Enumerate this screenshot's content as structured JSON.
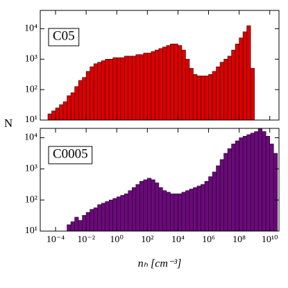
{
  "chart_data": [
    {
      "type": "histogram",
      "label": "C05",
      "color": "#dd0000",
      "edgecolor": "#300000",
      "log_x": true,
      "log_y": true,
      "ylabel": "N",
      "bins": [
        3.16e-05,
        5.62e-05,
        0.0001,
        0.000178,
        0.000316,
        0.000562,
        0.001,
        0.00178,
        0.00316,
        0.00562,
        0.01,
        0.0178,
        0.0316,
        0.0562,
        0.1,
        0.178,
        0.316,
        0.562,
        1,
        1.78,
        3.16,
        5.62,
        10,
        17.8,
        31.6,
        56.2,
        100,
        178,
        316,
        562,
        1000,
        1780,
        3160,
        5620,
        10000,
        17800,
        31600,
        56200,
        100000,
        178000,
        316000,
        562000,
        1000000.0,
        1780000.0,
        3160000.0,
        5620000.0,
        10000000.0,
        17800000.0,
        31600000.0,
        56200000.0,
        100000000.0,
        178000000.0,
        316000000.0,
        562000000.0,
        1000000000.0
      ],
      "values": [
        16,
        20,
        25,
        32,
        40,
        63,
        79,
        126,
        200,
        251,
        398,
        562,
        708,
        794,
        891,
        1000,
        1000,
        1122,
        1122,
        1122,
        1259,
        1259,
        1259,
        1413,
        1413,
        1585,
        1585,
        1778,
        1995,
        2239,
        2512,
        2818,
        3162,
        3162,
        2818,
        1995,
        1000,
        501,
        316,
        282,
        282,
        282,
        316,
        398,
        562,
        794,
        1000,
        1259,
        1995,
        3162,
        5012,
        7943,
        12589,
        501
      ],
      "xlim": [
        1e-05,
        40000000000.0
      ],
      "ylim": [
        10,
        40000
      ],
      "xticks": [
        0.0001,
        0.01,
        1,
        100,
        10000,
        1000000.0,
        100000000.0,
        10000000000.0
      ],
      "yticks": [
        {
          "value": 10,
          "label": "10¹"
        },
        {
          "value": 100,
          "label": "10²"
        },
        {
          "value": 1000,
          "label": "10³"
        },
        {
          "value": 10000,
          "label": "10⁴"
        }
      ]
    },
    {
      "type": "histogram",
      "label": "C0005",
      "color": "#6a0a7a",
      "edgecolor": "#200020",
      "log_x": true,
      "log_y": true,
      "xlabel": "nₕ [cm⁻³]",
      "bins": [
        0.000562,
        0.001,
        0.00178,
        0.00316,
        0.00562,
        0.01,
        0.0178,
        0.0316,
        0.0562,
        0.1,
        0.178,
        0.316,
        0.562,
        1,
        1.78,
        3.16,
        5.62,
        10,
        17.8,
        31.6,
        56.2,
        100,
        178,
        316,
        562,
        1000,
        1780,
        3160,
        5620,
        10000,
        17800,
        31600,
        56200,
        100000,
        178000,
        316000,
        562000,
        1000000.0,
        1780000.0,
        3160000.0,
        5620000.0,
        10000000.0,
        17800000.0,
        31600000.0,
        56200000.0,
        100000000.0,
        178000000.0,
        316000000.0,
        562000000.0,
        1000000000.0,
        1780000000.0,
        3160000000.0,
        5620000000.0,
        10000000000.0,
        17800000000.0,
        31600000000.0
      ],
      "values": [
        16,
        20,
        28,
        22,
        32,
        40,
        50,
        56,
        71,
        79,
        89,
        100,
        112,
        126,
        141,
        158,
        200,
        251,
        316,
        398,
        447,
        501,
        447,
        355,
        251,
        200,
        178,
        158,
        158,
        158,
        178,
        200,
        224,
        251,
        282,
        316,
        398,
        562,
        794,
        1259,
        1995,
        3162,
        4467,
        6310,
        7943,
        10000,
        11220,
        12589,
        14125,
        15849,
        19953,
        15849,
        11220,
        6310,
        3162
      ],
      "xlim": [
        1e-05,
        40000000000.0
      ],
      "ylim": [
        10,
        20000
      ],
      "xticks": [
        {
          "value": 0.0001,
          "label": "10⁻⁴"
        },
        {
          "value": 0.01,
          "label": "10⁻²"
        },
        {
          "value": 1,
          "label": "10⁰"
        },
        {
          "value": 100,
          "label": "10²"
        },
        {
          "value": 10000,
          "label": "10⁴"
        },
        {
          "value": 1000000.0,
          "label": "10⁶"
        },
        {
          "value": 100000000.0,
          "label": "10⁸"
        },
        {
          "value": 10000000000.0,
          "label": "10¹⁰"
        }
      ],
      "yticks": [
        {
          "value": 10,
          "label": "10¹"
        },
        {
          "value": 100,
          "label": "10²"
        },
        {
          "value": 1000,
          "label": "10³"
        },
        {
          "value": 10000,
          "label": "10⁴"
        }
      ]
    }
  ]
}
